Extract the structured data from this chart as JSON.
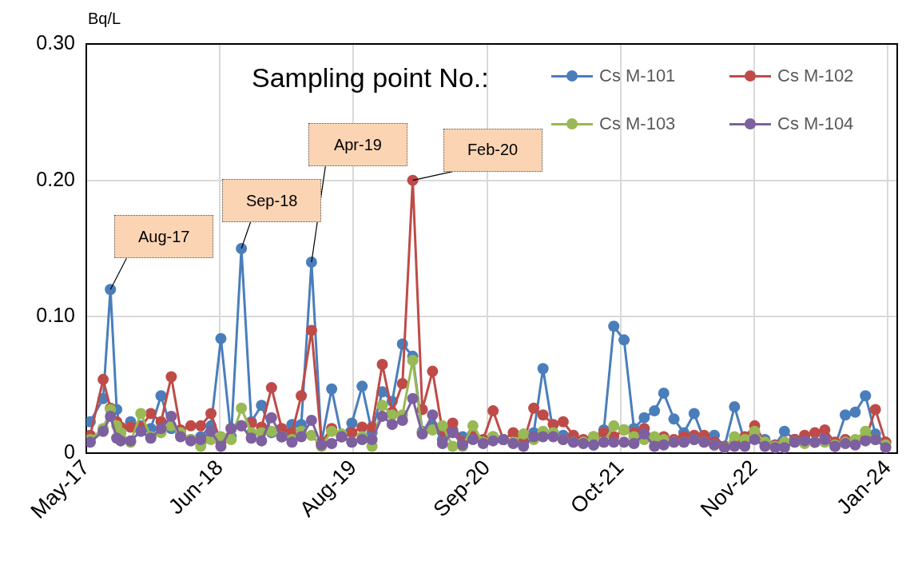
{
  "chart_data": {
    "type": "line",
    "ylabel": "Bq/L",
    "legend_title": "Sampling point No.:",
    "legend": "top right",
    "marker": "circle",
    "line_style": "solid",
    "grid": true,
    "xlim": [
      "2017-05-20",
      "2024-02-05"
    ],
    "xticks": [
      {
        "value": "2017-05-20",
        "label": "May-17"
      },
      {
        "value": "2018-06-28",
        "label": "Jun-18"
      },
      {
        "value": "2019-08-06",
        "label": "Aug-19"
      },
      {
        "value": "2020-09-13",
        "label": "Sep-20"
      },
      {
        "value": "2021-10-22",
        "label": "Oct-21"
      },
      {
        "value": "2022-11-30",
        "label": "Nov-22"
      },
      {
        "value": "2024-01-08",
        "label": "Jan-24"
      }
    ],
    "ylim": [
      0,
      0.3
    ],
    "yticks": [
      {
        "value": 0,
        "label": "0"
      },
      {
        "value": 0.1,
        "label": "0.10"
      },
      {
        "value": 0.2,
        "label": "0.20"
      },
      {
        "value": 0.3,
        "label": "0.30"
      }
    ],
    "x": [
      "2017-06",
      "2017-07-10",
      "2017-08",
      "2017-08-20",
      "2017-09",
      "2017-10",
      "2017-11",
      "2017-12",
      "2018-01",
      "2018-02",
      "2018-03",
      "2018-04",
      "2018-05",
      "2018-06",
      "2018-07",
      "2018-08",
      "2018-09",
      "2018-10",
      "2018-11",
      "2018-12",
      "2019-01",
      "2019-02",
      "2019-03",
      "2019-04",
      "2019-05",
      "2019-06",
      "2019-07",
      "2019-08",
      "2019-09",
      "2019-10",
      "2019-11",
      "2019-12",
      "2020-01",
      "2020-02",
      "2020-03",
      "2020-04",
      "2020-05",
      "2020-06",
      "2020-07",
      "2020-08",
      "2020-09",
      "2020-10",
      "2020-11",
      "2020-12",
      "2021-01",
      "2021-02",
      "2021-03",
      "2021-04",
      "2021-05",
      "2021-06",
      "2021-07",
      "2021-08",
      "2021-09",
      "2021-10",
      "2021-11",
      "2021-12",
      "2022-01",
      "2022-02",
      "2022-03",
      "2022-04",
      "2022-05",
      "2022-06",
      "2022-07",
      "2022-08",
      "2022-09",
      "2022-10",
      "2022-11",
      "2022-12",
      "2023-01",
      "2023-02",
      "2023-03",
      "2023-04",
      "2023-05",
      "2023-06",
      "2023-07",
      "2023-08",
      "2023-09",
      "2023-10",
      "2023-11",
      "2023-12",
      "2024-01"
    ],
    "series": [
      {
        "name": "Cs M-101",
        "color": "#4a7ebb",
        "values": [
          0.023,
          0.04,
          0.12,
          0.032,
          0.015,
          0.023,
          0.02,
          0.018,
          0.042,
          0.018,
          0.015,
          0.01,
          0.012,
          0.02,
          0.084,
          0.012,
          0.15,
          0.023,
          0.035,
          0.015,
          0.012,
          0.021,
          0.021,
          0.14,
          0.008,
          0.047,
          0.012,
          0.022,
          0.049,
          0.015,
          0.045,
          0.038,
          0.08,
          0.071,
          0.016,
          0.02,
          0.01,
          0.017,
          0.012,
          0.012,
          0.008,
          0.012,
          0.01,
          0.008,
          0.012,
          0.015,
          0.062,
          0.015,
          0.013,
          0.01,
          0.008,
          0.006,
          0.017,
          0.093,
          0.083,
          0.018,
          0.026,
          0.031,
          0.044,
          0.025,
          0.015,
          0.029,
          0.01,
          0.013,
          0.005,
          0.034,
          0.008,
          0.014,
          0.01,
          0.006,
          0.016,
          0.01,
          0.012,
          0.008,
          0.012,
          0.005,
          0.028,
          0.03,
          0.042,
          0.014,
          0.008
        ]
      },
      {
        "name": "Cs M-102",
        "color": "#be4b48",
        "values": [
          0.013,
          0.054,
          0.033,
          0.023,
          0.019,
          0.019,
          0.019,
          0.029,
          0.023,
          0.056,
          0.017,
          0.02,
          0.02,
          0.029,
          0.008,
          0.018,
          0.02,
          0.022,
          0.019,
          0.048,
          0.018,
          0.015,
          0.042,
          0.09,
          0.008,
          0.018,
          0.012,
          0.015,
          0.019,
          0.019,
          0.065,
          0.03,
          0.051,
          0.2,
          0.032,
          0.06,
          0.016,
          0.022,
          0.008,
          0.014,
          0.01,
          0.031,
          0.01,
          0.015,
          0.008,
          0.033,
          0.028,
          0.021,
          0.023,
          0.013,
          0.01,
          0.012,
          0.015,
          0.012,
          0.017,
          0.015,
          0.018,
          0.01,
          0.012,
          0.01,
          0.012,
          0.013,
          0.013,
          0.008,
          0.005,
          0.008,
          0.012,
          0.02,
          0.008,
          0.006,
          0.008,
          0.01,
          0.013,
          0.015,
          0.017,
          0.008,
          0.01,
          0.008,
          0.01,
          0.032,
          0.008
        ]
      },
      {
        "name": "Cs M-103",
        "color": "#98b954",
        "values": [
          0.01,
          0.018,
          0.032,
          0.02,
          0.015,
          0.008,
          0.029,
          0.012,
          0.015,
          0.02,
          0.015,
          0.01,
          0.005,
          0.01,
          0.012,
          0.01,
          0.033,
          0.015,
          0.015,
          0.016,
          0.012,
          0.01,
          0.016,
          0.013,
          0.005,
          0.016,
          0.014,
          0.008,
          0.012,
          0.005,
          0.035,
          0.028,
          0.028,
          0.068,
          0.015,
          0.017,
          0.02,
          0.005,
          0.005,
          0.02,
          0.008,
          0.012,
          0.01,
          0.008,
          0.014,
          0.01,
          0.016,
          0.015,
          0.01,
          0.008,
          0.008,
          0.012,
          0.008,
          0.02,
          0.017,
          0.012,
          0.01,
          0.012,
          0.01,
          0.008,
          0.008,
          0.01,
          0.008,
          0.006,
          0.004,
          0.012,
          0.01,
          0.016,
          0.008,
          0.005,
          0.008,
          0.008,
          0.007,
          0.008,
          0.008,
          0.006,
          0.008,
          0.01,
          0.016,
          0.01,
          0.006
        ]
      },
      {
        "name": "Cs M-104",
        "color": "#7d60a0",
        "values": [
          0.008,
          0.016,
          0.027,
          0.011,
          0.009,
          0.009,
          0.016,
          0.011,
          0.018,
          0.027,
          0.012,
          0.009,
          0.01,
          0.016,
          0.005,
          0.018,
          0.02,
          0.011,
          0.009,
          0.026,
          0.012,
          0.008,
          0.012,
          0.024,
          0.006,
          0.007,
          0.012,
          0.008,
          0.01,
          0.01,
          0.027,
          0.021,
          0.024,
          0.04,
          0.014,
          0.028,
          0.007,
          0.015,
          0.006,
          0.01,
          0.007,
          0.009,
          0.01,
          0.007,
          0.005,
          0.012,
          0.012,
          0.012,
          0.01,
          0.008,
          0.007,
          0.006,
          0.008,
          0.008,
          0.008,
          0.007,
          0.014,
          0.005,
          0.006,
          0.008,
          0.008,
          0.01,
          0.008,
          0.006,
          0.004,
          0.005,
          0.005,
          0.01,
          0.005,
          0.004,
          0.004,
          0.008,
          0.009,
          0.008,
          0.01,
          0.005,
          0.007,
          0.006,
          0.009,
          0.01,
          0.004
        ]
      }
    ],
    "annotations": [
      {
        "text": "Aug-17",
        "x": "2017-08",
        "y": 0.12
      },
      {
        "text": "Sep-18",
        "x": "2018-09",
        "y": 0.15
      },
      {
        "text": "Apr-19",
        "x": "2019-04",
        "y": 0.14
      },
      {
        "text": "Feb-20",
        "x": "2020-02",
        "y": 0.2
      }
    ]
  }
}
